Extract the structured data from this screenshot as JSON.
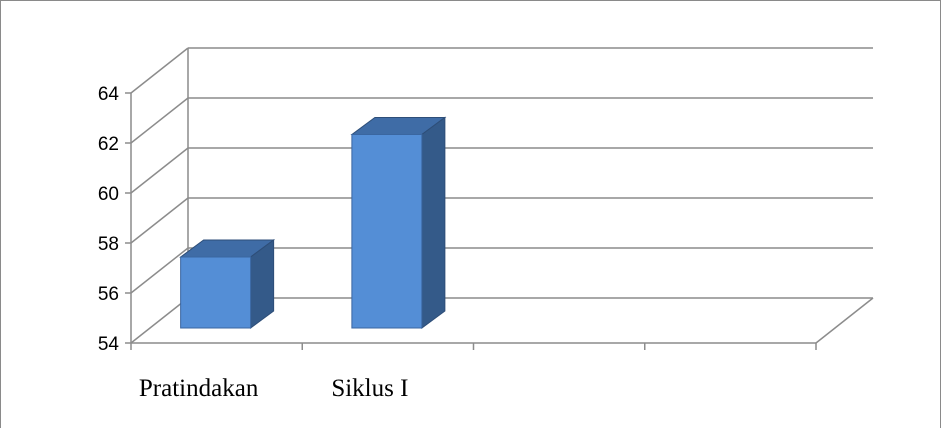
{
  "chart_data": {
    "type": "bar",
    "style": "3d-column",
    "categories": [
      "Pratindakan",
      "Siklus I"
    ],
    "values": [
      57.6,
      62.5
    ],
    "ylim": [
      54,
      64
    ],
    "yticks": [
      54,
      56,
      58,
      60,
      62,
      64
    ],
    "grid": true,
    "legend": "none",
    "colors": {
      "bar_front": "#548ED6",
      "bar_side": "#345A89",
      "bar_top": "#3F6CA6",
      "grid": "#8c8c8c"
    }
  }
}
